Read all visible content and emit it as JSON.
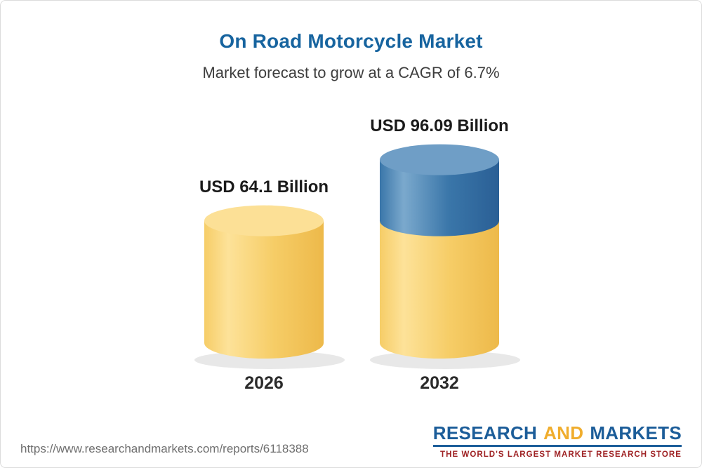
{
  "header": {
    "title": "On Road Motorcycle Market",
    "subtitle": "Market forecast to grow at a CAGR of 6.7%"
  },
  "chart_data": {
    "type": "bar",
    "variant": "3d-cylinder",
    "title": "On Road Motorcycle Market",
    "subtitle": "Market forecast to grow at a CAGR of 6.7%",
    "categories": [
      "2026",
      "2032"
    ],
    "values": [
      64.1,
      96.09
    ],
    "unit": "USD Billion",
    "cagr_percent": 6.7,
    "ylim": [
      0,
      100
    ],
    "grid": false,
    "legend": "none",
    "bars": [
      {
        "category": "2026",
        "value": 64.1,
        "value_label": "USD 64.1 Billion",
        "segments": [
          {
            "value": 64.1,
            "color_key": "yellow"
          }
        ]
      },
      {
        "category": "2032",
        "value": 96.09,
        "value_label": "USD 96.09 Billion",
        "segments": [
          {
            "value": 64.1,
            "color_key": "yellow"
          },
          {
            "value": 31.99,
            "color_key": "blue"
          }
        ]
      }
    ]
  },
  "footer": {
    "report_url": "https://www.researchandmarkets.com/reports/6118388",
    "logo": {
      "word_research": "RESEARCH",
      "word_and": "AND",
      "word_markets": "MARKETS",
      "tagline": "THE WORLD'S LARGEST MARKET RESEARCH STORE"
    }
  },
  "colors": {
    "title_blue": "#17649f",
    "subtitle_gray": "#3d3d3d",
    "label_dark": "#1a1a1a",
    "yellow_body_main": "#f6cd67",
    "yellow_body_light": "#fde299",
    "yellow_body_dark": "#edb94a",
    "yellow_top": "#fce096",
    "blue_body_main": "#3a76a9",
    "blue_body_light": "#7ba9cd",
    "blue_body_dark": "#2a5f95",
    "blue_top": "#6f9ec6",
    "shadow": "#e4e4e4",
    "url_gray": "#6e6e6e",
    "logo_blue": "#1c5d99",
    "logo_yellow": "#f0ad2d",
    "logo_tagline_red": "#9e2123"
  }
}
